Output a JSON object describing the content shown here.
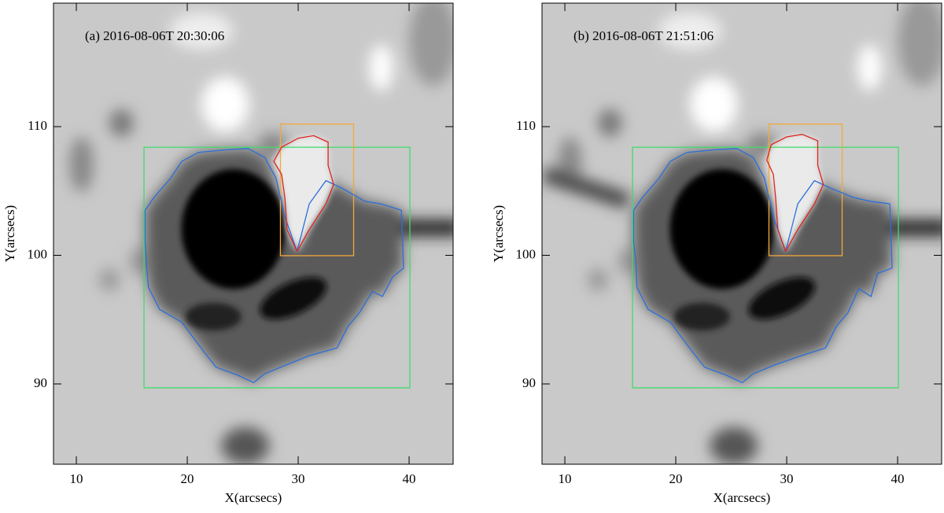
{
  "chart_data": [
    {
      "type": "image",
      "title": "(a) 2016-08-06T 20:30:06",
      "xlabel": "X(arcsecs)",
      "ylabel": "Y(arcsecs)",
      "xlim": [
        7.94,
        43.97
      ],
      "ylim": [
        83.76,
        119.6
      ],
      "xticks": [
        10,
        20,
        30,
        40
      ],
      "yticks": [
        90,
        100,
        110
      ],
      "boxes": [
        {
          "color": "#3fdc6a",
          "x": [
            16.1,
            40.07
          ],
          "y": [
            89.7,
            108.4
          ]
        },
        {
          "color": "#f2a93b",
          "x": [
            28.4,
            35.0
          ],
          "y": [
            99.97,
            110.2
          ]
        }
      ],
      "contours": [
        {
          "color": "#2a6fdb",
          "x": [
            29.9,
            31,
            32.5,
            34,
            36,
            37.5,
            39.3,
            39.5,
            38.5,
            37.6,
            36.7,
            35.5,
            34.5,
            33.5,
            31,
            29,
            27,
            26,
            24.5,
            22.6,
            21.5,
            19.5,
            17.5,
            16.5,
            16.3,
            16.2,
            16.2,
            17,
            18.5,
            19.5,
            21,
            23.5,
            25.5,
            27,
            28,
            28.8,
            29.9
          ],
          "y": [
            100.3,
            104,
            105.8,
            105.2,
            104.2,
            104,
            103.5,
            99,
            98.3,
            96.8,
            97.2,
            95.5,
            94.5,
            92.8,
            92.2,
            91.5,
            90.8,
            90.1,
            90.7,
            91.3,
            92.5,
            94.8,
            95.8,
            97.5,
            99.5,
            101,
            103.5,
            104.5,
            106,
            107.3,
            108,
            108.2,
            108.3,
            107.6,
            106,
            103,
            100.3
          ]
        },
        {
          "color": "#e0231c",
          "x": [
            29.9,
            29,
            28.8,
            28.5,
            27.8,
            28.5,
            30,
            31.4,
            32.7,
            32.7,
            33.2,
            32.5,
            31,
            29.9
          ],
          "y": [
            100.3,
            102,
            104.5,
            106.3,
            107.3,
            108.4,
            109.1,
            109.3,
            108.8,
            107,
            105.5,
            104,
            102,
            100.3
          ]
        }
      ]
    },
    {
      "type": "image",
      "title": "(b) 2016-08-06T 21:51:06",
      "xlabel": "X(arcsecs)",
      "ylabel": "Y(arcsecs)",
      "xlim": [
        7.94,
        43.97
      ],
      "ylim": [
        83.76,
        119.6
      ],
      "xticks": [
        10,
        20,
        30,
        40
      ],
      "yticks": [
        90,
        100,
        110
      ],
      "boxes": [
        {
          "color": "#3fdc6a",
          "x": [
            16.1,
            40.07
          ],
          "y": [
            89.7,
            108.4
          ]
        },
        {
          "color": "#f2a93b",
          "x": [
            28.4,
            35.0
          ],
          "y": [
            99.97,
            110.2
          ]
        }
      ],
      "contours": [
        {
          "color": "#2a6fdb",
          "x": [
            29.9,
            31,
            32.5,
            34,
            36,
            37.5,
            39.3,
            39.5,
            38.2,
            37.6,
            36.5,
            35.5,
            34.5,
            33.5,
            31,
            29,
            27,
            26,
            24.5,
            22.6,
            21.5,
            19.5,
            17.5,
            16.5,
            16.4,
            16.2,
            16.2,
            17,
            18.5,
            19.5,
            21,
            23.5,
            25.5,
            27,
            28,
            28.8,
            29.9
          ],
          "y": [
            100.3,
            104,
            105.8,
            105.2,
            104.5,
            104.2,
            104,
            99,
            98.6,
            96.8,
            97.4,
            95.5,
            94.5,
            92.8,
            92.1,
            91.5,
            90.8,
            90.1,
            90.7,
            91.3,
            92.5,
            94.8,
            95.8,
            97.5,
            99.5,
            101,
            103.5,
            104.5,
            106,
            107.3,
            108,
            108.2,
            108.3,
            107.6,
            106,
            103,
            100.3
          ]
        },
        {
          "color": "#e0231c",
          "x": [
            29.9,
            29.2,
            29,
            28.8,
            28.2,
            28.6,
            30,
            31.4,
            32.8,
            32.8,
            33.3,
            32.5,
            31,
            29.9
          ],
          "y": [
            100.3,
            102,
            104.5,
            106.3,
            107.4,
            108.6,
            109.2,
            109.4,
            108.9,
            107,
            105.5,
            104,
            102,
            100.3
          ]
        }
      ]
    }
  ]
}
